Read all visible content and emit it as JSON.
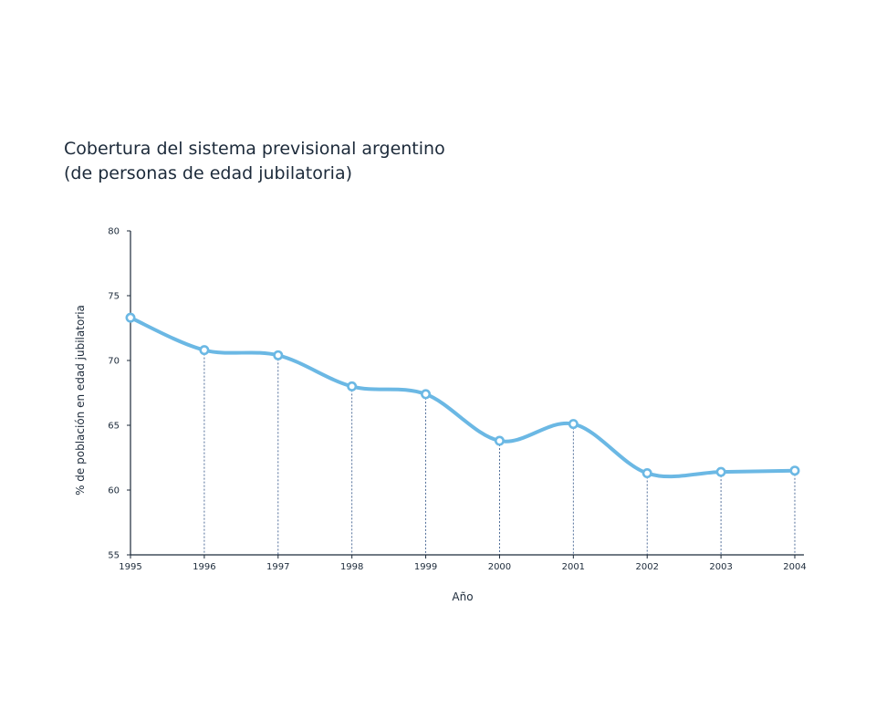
{
  "chart_data": {
    "type": "line",
    "title": [
      "Cobertura del sistema previsional argentino",
      "(de personas de edad jubilatoria)"
    ],
    "xlabel": "Año",
    "ylabel": "% de población en edad jubilatoria",
    "x": [
      1995,
      1996,
      1997,
      1998,
      1999,
      2000,
      2001,
      2002,
      2003,
      2004
    ],
    "series": [
      {
        "values": [
          73.3,
          70.8,
          70.4,
          68.0,
          67.4,
          63.8,
          65.1,
          61.3,
          61.4,
          61.5
        ]
      }
    ],
    "ylim": [
      55,
      80
    ],
    "yticks": [
      55,
      60,
      65,
      70,
      75,
      80
    ],
    "xticks": [
      "1995",
      "1996",
      "1997",
      "1998",
      "1999",
      "2000",
      "2001",
      "2002",
      "2003",
      "2004"
    ],
    "grid": false,
    "drop_lines": true,
    "colors": {
      "line": "#6bb8e4",
      "axis": "#1c2a3a",
      "dropline": "#3f5f8f"
    }
  }
}
